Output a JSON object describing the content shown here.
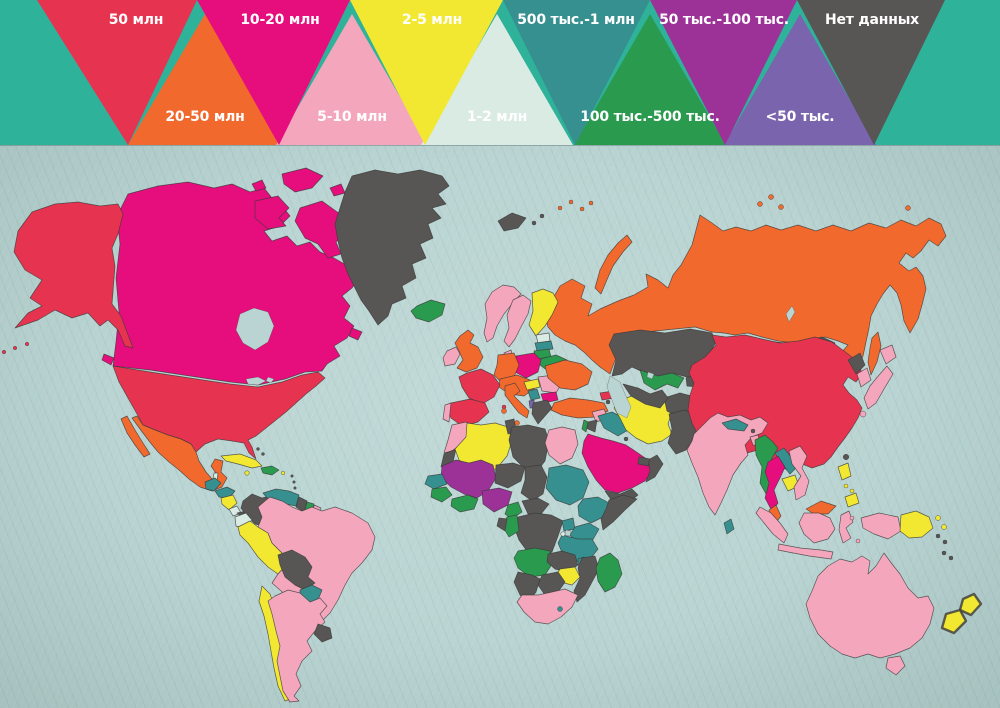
{
  "legend": {
    "background_color": "#2fb29a",
    "items": [
      {
        "id": "m50",
        "label": "50 млн",
        "color": "#e63350",
        "row": "top"
      },
      {
        "id": "m20_50",
        "label": "20-50 млн",
        "color": "#f2692e",
        "row": "bottom"
      },
      {
        "id": "m10_20",
        "label": "10-20 млн",
        "color": "#e60d7d",
        "row": "top"
      },
      {
        "id": "m5_10",
        "label": "5-10 млн",
        "color": "#f4a6bc",
        "row": "bottom"
      },
      {
        "id": "m2_5",
        "label": "2-5 млн",
        "color": "#f2e832",
        "row": "top"
      },
      {
        "id": "m1_2",
        "label": "1-2 млн",
        "color": "#d9ebe3",
        "row": "bottom"
      },
      {
        "id": "k500_1m",
        "label": "500 тыс.-1 млн",
        "color": "#35908f",
        "row": "top"
      },
      {
        "id": "k100_500",
        "label": "100 тыс.-500 тыс.",
        "color": "#2a9b4e",
        "row": "bottom"
      },
      {
        "id": "k50_100",
        "label": "50 тыс.-100 тыс.",
        "color": "#9c3198",
        "row": "top"
      },
      {
        "id": "lt50",
        "label": "<50 тыс.",
        "color": "#7964ad",
        "row": "bottom"
      },
      {
        "id": "nodata",
        "label": "Нет данных",
        "color": "#585555",
        "row": "top"
      }
    ]
  },
  "map": {
    "ocean_color": "#b9d4d2",
    "border_color": "#3a3a38",
    "countries": [
      {
        "name": "russia",
        "category": "m20_50"
      },
      {
        "name": "kazakhstan",
        "category": "nodata"
      },
      {
        "name": "canada",
        "category": "m10_20"
      },
      {
        "name": "usa",
        "category": "m50"
      },
      {
        "name": "alaska",
        "category": "m50"
      },
      {
        "name": "aleutians",
        "category": "m50"
      },
      {
        "name": "greenland",
        "category": "nodata"
      },
      {
        "name": "mexico",
        "category": "m20_50"
      },
      {
        "name": "belize",
        "category": "m1_2"
      },
      {
        "name": "guatemala",
        "category": "k500_1m"
      },
      {
        "name": "honduras",
        "category": "k500_1m"
      },
      {
        "name": "nicaragua",
        "category": "m2_5"
      },
      {
        "name": "costarica",
        "category": "m1_2"
      },
      {
        "name": "panama",
        "category": "nodata"
      },
      {
        "name": "cuba",
        "category": "m2_5"
      },
      {
        "name": "jamaica",
        "category": "m2_5"
      },
      {
        "name": "hispaniola",
        "category": "k100_500"
      },
      {
        "name": "puertorico",
        "category": "m2_5"
      },
      {
        "name": "bahamas",
        "category": "nodata"
      },
      {
        "name": "antilles",
        "category": "nodata"
      },
      {
        "name": "colombia",
        "category": "nodata"
      },
      {
        "name": "venezuela",
        "category": "k500_1m"
      },
      {
        "name": "guyana",
        "category": "nodata"
      },
      {
        "name": "suriname",
        "category": "k100_500"
      },
      {
        "name": "frenchguiana",
        "category": "m5_10"
      },
      {
        "name": "ecuador",
        "category": "m1_2"
      },
      {
        "name": "peru",
        "category": "m2_5"
      },
      {
        "name": "brazil",
        "category": "m5_10"
      },
      {
        "name": "bolivia",
        "category": "nodata"
      },
      {
        "name": "paraguay",
        "category": "k500_1m"
      },
      {
        "name": "chile",
        "category": "m2_5"
      },
      {
        "name": "argentina",
        "category": "m5_10"
      },
      {
        "name": "uruguay",
        "category": "nodata"
      },
      {
        "name": "iceland",
        "category": "k100_500"
      },
      {
        "name": "uk",
        "category": "m20_50"
      },
      {
        "name": "ireland",
        "category": "m5_10"
      },
      {
        "name": "norway",
        "category": "m5_10"
      },
      {
        "name": "sweden",
        "category": "m5_10"
      },
      {
        "name": "finland",
        "category": "m2_5"
      },
      {
        "name": "denmark",
        "category": "m5_10"
      },
      {
        "name": "estonia",
        "category": "m1_2"
      },
      {
        "name": "latvia",
        "category": "k500_1m"
      },
      {
        "name": "lithuania",
        "category": "k100_500"
      },
      {
        "name": "belarus",
        "category": "k100_500"
      },
      {
        "name": "poland",
        "category": "m10_20"
      },
      {
        "name": "germany",
        "category": "m20_50"
      },
      {
        "name": "centraleurope",
        "category": "m20_50"
      },
      {
        "name": "france",
        "category": "m50"
      },
      {
        "name": "spain",
        "category": "m50"
      },
      {
        "name": "portugal",
        "category": "m5_10"
      },
      {
        "name": "italy",
        "category": "m20_50"
      },
      {
        "name": "hungary",
        "category": "m2_5"
      },
      {
        "name": "romania",
        "category": "m5_10"
      },
      {
        "name": "serbia",
        "category": "k500_1m"
      },
      {
        "name": "bulgaria",
        "category": "m10_20"
      },
      {
        "name": "albania",
        "category": "lt50"
      },
      {
        "name": "greece",
        "category": "nodata"
      },
      {
        "name": "ukraine",
        "category": "m20_50"
      },
      {
        "name": "svalbard",
        "category": "nodata"
      },
      {
        "name": "franzjosef",
        "category": "m20_50"
      },
      {
        "name": "novayazemlya",
        "category": "m20_50"
      },
      {
        "name": "severnayazemlya",
        "category": "m20_50"
      },
      {
        "name": "sakhalin",
        "category": "m20_50"
      },
      {
        "name": "georgia",
        "category": "m50"
      },
      {
        "name": "azerbaijan",
        "category": "m5_10"
      },
      {
        "name": "armenia",
        "category": "nodata"
      },
      {
        "name": "turkey",
        "category": "m20_50"
      },
      {
        "name": "syria",
        "category": "m5_10"
      },
      {
        "name": "iraq",
        "category": "k500_1m"
      },
      {
        "name": "jordan",
        "category": "nodata"
      },
      {
        "name": "israel",
        "category": "k100_500"
      },
      {
        "name": "saudi",
        "category": "m10_20"
      },
      {
        "name": "kuwait",
        "category": "nodata"
      },
      {
        "name": "yemen",
        "category": "nodata"
      },
      {
        "name": "oman",
        "category": "nodata"
      },
      {
        "name": "uae",
        "category": "nodata"
      },
      {
        "name": "iran",
        "category": "m2_5"
      },
      {
        "name": "afghanistan",
        "category": "nodata"
      },
      {
        "name": "pakistan",
        "category": "nodata"
      },
      {
        "name": "turkmenistan",
        "category": "nodata"
      },
      {
        "name": "uzbekistan",
        "category": "k100_500"
      },
      {
        "name": "kyrgyztajik",
        "category": "nodata"
      },
      {
        "name": "mongolia",
        "category": "nodata"
      },
      {
        "name": "china",
        "category": "m50"
      },
      {
        "name": "taiwan",
        "category": "nodata"
      },
      {
        "name": "northkorea",
        "category": "nodata"
      },
      {
        "name": "southkorea",
        "category": "m5_10"
      },
      {
        "name": "japan",
        "category": "m5_10"
      },
      {
        "name": "india",
        "category": "m5_10"
      },
      {
        "name": "nepal",
        "category": "k500_1m"
      },
      {
        "name": "bhutan",
        "category": "nodata"
      },
      {
        "name": "bangladesh",
        "category": "m5_10"
      },
      {
        "name": "srilanka",
        "category": "k500_1m"
      },
      {
        "name": "myanmar",
        "category": "k100_500"
      },
      {
        "name": "laos",
        "category": "k500_1m"
      },
      {
        "name": "thailand",
        "category": "m10_20"
      },
      {
        "name": "cambodia",
        "category": "m2_5"
      },
      {
        "name": "vietnam",
        "category": "m5_10"
      },
      {
        "name": "malaysia",
        "category": "m20_50"
      },
      {
        "name": "philippines",
        "category": "m2_5"
      },
      {
        "name": "indonesia",
        "category": "m5_10"
      },
      {
        "name": "papuanewguinea",
        "category": "m2_5"
      },
      {
        "name": "morocco",
        "category": "m5_10"
      },
      {
        "name": "wsahara",
        "category": "nodata"
      },
      {
        "name": "algeria",
        "category": "m2_5"
      },
      {
        "name": "tunisia",
        "category": "nodata"
      },
      {
        "name": "libya",
        "category": "nodata"
      },
      {
        "name": "egypt",
        "category": "m5_10"
      },
      {
        "name": "mali",
        "category": "k50_100"
      },
      {
        "name": "niger",
        "category": "nodata"
      },
      {
        "name": "chad",
        "category": "nodata"
      },
      {
        "name": "sudan",
        "category": "k500_1m"
      },
      {
        "name": "ethiopia",
        "category": "k500_1m"
      },
      {
        "name": "somalia",
        "category": "nodata"
      },
      {
        "name": "senegal",
        "category": "k500_1m"
      },
      {
        "name": "guinea",
        "category": "k100_500"
      },
      {
        "name": "ghana",
        "category": "k100_500"
      },
      {
        "name": "nigeria",
        "category": "k50_100"
      },
      {
        "name": "cameroon",
        "category": "k100_500"
      },
      {
        "name": "car",
        "category": "nodata"
      },
      {
        "name": "drc",
        "category": "nodata"
      },
      {
        "name": "congo",
        "category": "k100_500"
      },
      {
        "name": "gabon",
        "category": "nodata"
      },
      {
        "name": "uganda",
        "category": "k500_1m"
      },
      {
        "name": "kenya",
        "category": "k500_1m"
      },
      {
        "name": "tanzania",
        "category": "k500_1m"
      },
      {
        "name": "rwanda",
        "category": "m1_2"
      },
      {
        "name": "angola",
        "category": "k100_500"
      },
      {
        "name": "zambia",
        "category": "nodata"
      },
      {
        "name": "malawi",
        "category": "k500_1m"
      },
      {
        "name": "mozambique",
        "category": "nodata"
      },
      {
        "name": "zimbabwe",
        "category": "m2_5"
      },
      {
        "name": "botswana",
        "category": "nodata"
      },
      {
        "name": "namibia",
        "category": "nodata"
      },
      {
        "name": "southafrica",
        "category": "m5_10"
      },
      {
        "name": "lesotho",
        "category": "k500_1m"
      },
      {
        "name": "madagascar",
        "category": "k100_500"
      },
      {
        "name": "australia",
        "category": "m5_10"
      },
      {
        "name": "tasmania",
        "category": "m5_10"
      },
      {
        "name": "newcaledonia",
        "category": "nodata"
      },
      {
        "name": "solomons",
        "category": "nodata"
      },
      {
        "name": "newzealand",
        "category": "m2_5"
      }
    ]
  }
}
